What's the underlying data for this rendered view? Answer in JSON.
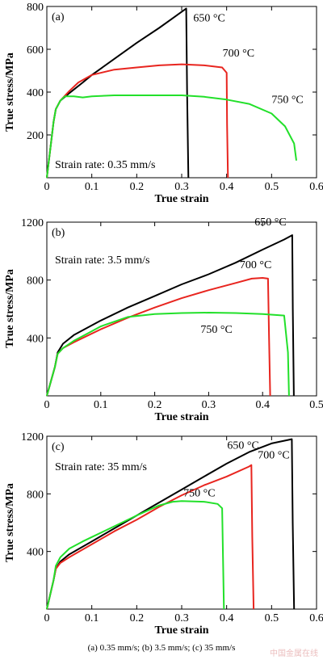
{
  "caption": "(a) 0.35 mm/s; (b) 3.5 mm/s; (c) 35 mm/s",
  "watermark": "中国金属在线",
  "colors": {
    "650": "#000000",
    "700": "#e8251f",
    "750": "#22e02a"
  },
  "chart_data": [
    {
      "type": "line",
      "panel_label": "(a)",
      "annotation": "Strain rate: 0.35 mm/s",
      "xlabel": "True strain",
      "ylabel": "True stress/MPa",
      "xlim": [
        0,
        0.6
      ],
      "ylim": [
        0,
        800
      ],
      "xticks": [
        0,
        0.1,
        0.2,
        0.3,
        0.4,
        0.5,
        0.6
      ],
      "xtick_labels": [
        "0",
        "0.1",
        "0.2",
        "0.3",
        "0.4",
        "0.5",
        "0.6"
      ],
      "yticks": [
        200,
        400,
        600,
        800
      ],
      "ytick_labels": [
        "200",
        "400",
        "600",
        "800"
      ],
      "series": [
        {
          "name": "650 °C",
          "color": "#000000",
          "x": [
            0,
            0.015,
            0.02,
            0.03,
            0.05,
            0.08,
            0.1,
            0.12,
            0.15,
            0.2,
            0.25,
            0.28,
            0.3,
            0.31,
            0.312,
            0.315
          ],
          "y": [
            0,
            260,
            320,
            360,
            395,
            445,
            480,
            510,
            555,
            630,
            700,
            745,
            775,
            790,
            400,
            0
          ]
        },
        {
          "name": "700 °C",
          "color": "#e8251f",
          "x": [
            0,
            0.015,
            0.02,
            0.03,
            0.05,
            0.07,
            0.1,
            0.15,
            0.2,
            0.25,
            0.3,
            0.35,
            0.39,
            0.4,
            0.401,
            0.403
          ],
          "y": [
            0,
            260,
            320,
            360,
            405,
            445,
            480,
            505,
            515,
            525,
            530,
            525,
            515,
            490,
            250,
            0
          ]
        },
        {
          "name": "750 °C",
          "color": "#22e02a",
          "x": [
            0,
            0.015,
            0.02,
            0.03,
            0.04,
            0.06,
            0.08,
            0.1,
            0.15,
            0.2,
            0.25,
            0.3,
            0.35,
            0.4,
            0.45,
            0.5,
            0.53,
            0.55,
            0.555
          ],
          "y": [
            0,
            260,
            320,
            360,
            380,
            380,
            375,
            380,
            385,
            385,
            385,
            385,
            378,
            365,
            345,
            300,
            240,
            160,
            80
          ]
        }
      ],
      "series_labels": [
        "650 °C",
        "700 °C",
        "750 °C"
      ]
    },
    {
      "type": "line",
      "panel_label": "(b)",
      "annotation": "Strain rate: 3.5 mm/s",
      "xlabel": "True strain",
      "ylabel": "True stress/MPa",
      "xlim": [
        0,
        0.5
      ],
      "ylim": [
        0,
        1200
      ],
      "xticks": [
        0,
        0.1,
        0.2,
        0.3,
        0.4,
        0.5
      ],
      "xtick_labels": [
        "0",
        "0.1",
        "0.2",
        "0.3",
        "0.4",
        "0.5"
      ],
      "yticks": [
        400,
        800,
        1200
      ],
      "ytick_labels": [
        "400",
        "800",
        "1200"
      ],
      "series": [
        {
          "name": "650 °C",
          "color": "#000000",
          "x": [
            0,
            0.015,
            0.02,
            0.03,
            0.05,
            0.1,
            0.15,
            0.2,
            0.25,
            0.3,
            0.35,
            0.4,
            0.44,
            0.455,
            0.456,
            0.458
          ],
          "y": [
            0,
            200,
            300,
            360,
            420,
            520,
            610,
            690,
            770,
            840,
            920,
            1010,
            1080,
            1110,
            600,
            0
          ]
        },
        {
          "name": "700 °C",
          "color": "#e8251f",
          "x": [
            0,
            0.015,
            0.02,
            0.03,
            0.05,
            0.1,
            0.15,
            0.2,
            0.25,
            0.3,
            0.35,
            0.38,
            0.4,
            0.41,
            0.412,
            0.414
          ],
          "y": [
            0,
            200,
            290,
            330,
            370,
            460,
            540,
            610,
            675,
            730,
            780,
            810,
            815,
            810,
            400,
            0
          ]
        },
        {
          "name": "750 °C",
          "color": "#22e02a",
          "x": [
            0,
            0.015,
            0.02,
            0.03,
            0.05,
            0.08,
            0.1,
            0.15,
            0.2,
            0.25,
            0.3,
            0.35,
            0.4,
            0.44,
            0.447,
            0.449
          ],
          "y": [
            0,
            200,
            290,
            330,
            380,
            440,
            480,
            545,
            565,
            572,
            575,
            572,
            565,
            555,
            300,
            0
          ]
        }
      ],
      "series_labels": [
        "650 °C",
        "700 °C",
        "750 °C"
      ]
    },
    {
      "type": "line",
      "panel_label": "(c)",
      "annotation": "Strain rate: 35 mm/s",
      "xlabel": "True strain",
      "ylabel": "True stress/MPa",
      "xlim": [
        0,
        0.6
      ],
      "ylim": [
        0,
        1200
      ],
      "xticks": [
        0,
        0.1,
        0.2,
        0.3,
        0.4,
        0.5,
        0.6
      ],
      "xtick_labels": [
        "0",
        "0.1",
        "0.2",
        "0.3",
        "0.4",
        "0.5",
        "0.6"
      ],
      "yticks": [
        400,
        800,
        1200
      ],
      "ytick_labels": [
        "400",
        "800",
        "1200"
      ],
      "series": [
        {
          "name": "650 °C",
          "color": "#000000",
          "x": [
            0,
            0.015,
            0.02,
            0.03,
            0.05,
            0.1,
            0.15,
            0.2,
            0.25,
            0.3,
            0.35,
            0.4,
            0.45,
            0.5,
            0.545,
            0.547,
            0.55
          ],
          "y": [
            0,
            200,
            280,
            330,
            380,
            470,
            560,
            650,
            740,
            830,
            920,
            1010,
            1090,
            1150,
            1180,
            600,
            0
          ]
        },
        {
          "name": "700 °C",
          "color": "#e8251f",
          "x": [
            0,
            0.015,
            0.02,
            0.03,
            0.05,
            0.1,
            0.15,
            0.2,
            0.25,
            0.3,
            0.35,
            0.4,
            0.45,
            0.455,
            0.457,
            0.46
          ],
          "y": [
            0,
            200,
            280,
            320,
            360,
            450,
            540,
            620,
            710,
            790,
            860,
            920,
            990,
            1000,
            500,
            0
          ]
        },
        {
          "name": "750 °C",
          "color": "#22e02a",
          "x": [
            0,
            0.015,
            0.02,
            0.03,
            0.05,
            0.08,
            0.1,
            0.15,
            0.2,
            0.25,
            0.28,
            0.3,
            0.35,
            0.38,
            0.39,
            0.392,
            0.394
          ],
          "y": [
            0,
            200,
            300,
            360,
            420,
            470,
            500,
            575,
            650,
            720,
            745,
            750,
            745,
            730,
            700,
            350,
            0
          ]
        }
      ],
      "series_labels": [
        "650 °C",
        "700 °C",
        "750 °C"
      ]
    }
  ]
}
